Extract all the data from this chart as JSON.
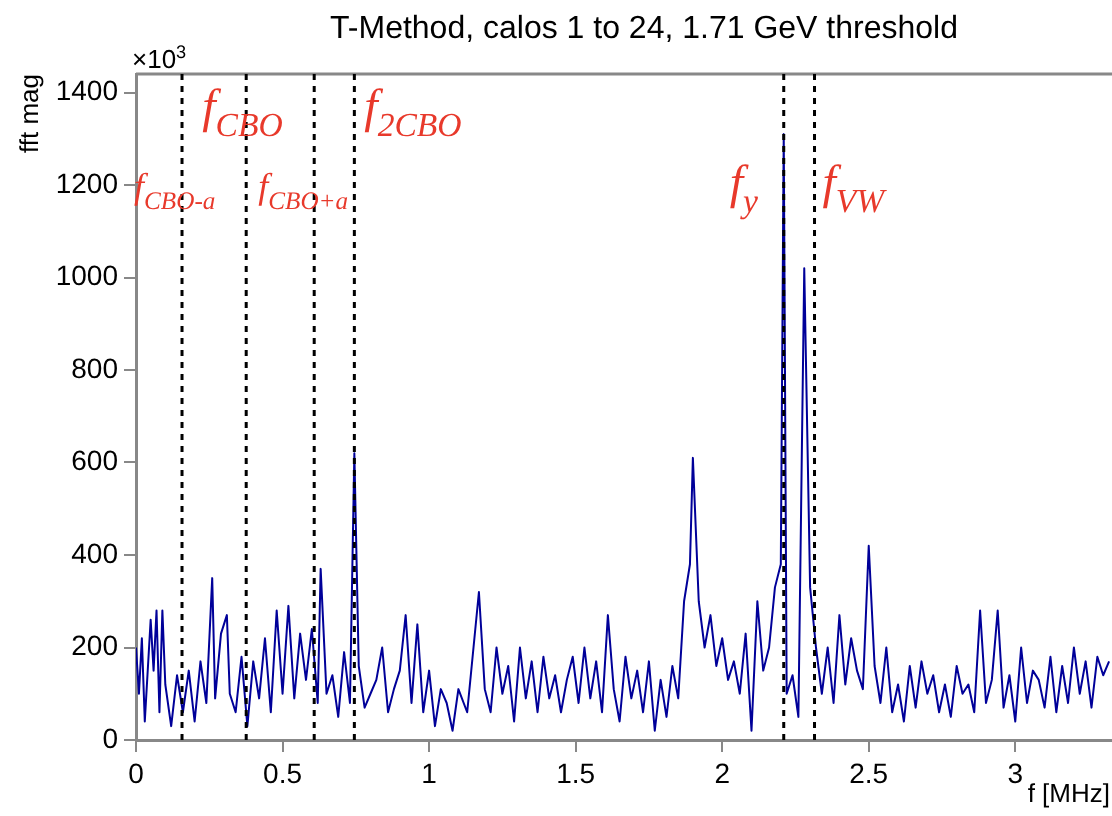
{
  "chart_data": {
    "type": "line",
    "title": "T-Method, calos 1 to 24, 1.71 GeV threshold",
    "xlabel": "f [MHz]",
    "ylabel": "fft mag",
    "xlim": [
      0,
      3.33
    ],
    "xticks": [
      0,
      0.5,
      1,
      1.5,
      2,
      2.5,
      3
    ],
    "ylim": [
      0,
      1440
    ],
    "yticks": [
      0,
      200,
      400,
      600,
      800,
      1000,
      1200,
      1400
    ],
    "grid": false,
    "legend": false,
    "marker": "none",
    "line_style": "solid",
    "series": [
      {
        "color": "#000099",
        "x": [
          0,
          0.01,
          0.02,
          0.03,
          0.05,
          0.06,
          0.07,
          0.08,
          0.09,
          0.1,
          0.12,
          0.14,
          0.16,
          0.18,
          0.2,
          0.22,
          0.24,
          0.26,
          0.27,
          0.29,
          0.31,
          0.32,
          0.34,
          0.36,
          0.38,
          0.4,
          0.42,
          0.44,
          0.46,
          0.48,
          0.5,
          0.52,
          0.54,
          0.56,
          0.58,
          0.6,
          0.62,
          0.63,
          0.65,
          0.67,
          0.69,
          0.71,
          0.73,
          0.745,
          0.76,
          0.78,
          0.8,
          0.82,
          0.84,
          0.86,
          0.88,
          0.9,
          0.92,
          0.94,
          0.96,
          0.98,
          1.0,
          1.02,
          1.04,
          1.06,
          1.08,
          1.1,
          1.13,
          1.17,
          1.19,
          1.21,
          1.23,
          1.25,
          1.27,
          1.29,
          1.31,
          1.33,
          1.35,
          1.37,
          1.39,
          1.41,
          1.43,
          1.45,
          1.47,
          1.49,
          1.51,
          1.53,
          1.55,
          1.57,
          1.59,
          1.61,
          1.63,
          1.65,
          1.67,
          1.69,
          1.71,
          1.73,
          1.75,
          1.77,
          1.79,
          1.81,
          1.83,
          1.85,
          1.87,
          1.89,
          1.9,
          1.92,
          1.94,
          1.96,
          1.98,
          2.0,
          2.02,
          2.04,
          2.06,
          2.08,
          2.1,
          2.12,
          2.14,
          2.16,
          2.18,
          2.2,
          2.21,
          2.22,
          2.24,
          2.26,
          2.28,
          2.3,
          2.32,
          2.34,
          2.36,
          2.38,
          2.4,
          2.42,
          2.44,
          2.46,
          2.48,
          2.5,
          2.52,
          2.54,
          2.56,
          2.58,
          2.6,
          2.62,
          2.64,
          2.66,
          2.68,
          2.7,
          2.72,
          2.74,
          2.76,
          2.78,
          2.8,
          2.82,
          2.84,
          2.86,
          2.88,
          2.9,
          2.92,
          2.94,
          2.96,
          2.98,
          3.0,
          3.02,
          3.04,
          3.06,
          3.08,
          3.1,
          3.12,
          3.14,
          3.16,
          3.18,
          3.2,
          3.22,
          3.24,
          3.26,
          3.28,
          3.3,
          3.32
        ],
        "values": [
          200,
          100,
          220,
          40,
          260,
          150,
          280,
          60,
          280,
          120,
          30,
          140,
          60,
          150,
          40,
          170,
          80,
          350,
          90,
          230,
          270,
          100,
          60,
          180,
          30,
          170,
          90,
          220,
          60,
          280,
          100,
          290,
          90,
          230,
          130,
          240,
          80,
          370,
          100,
          140,
          50,
          190,
          80,
          620,
          160,
          70,
          100,
          130,
          200,
          60,
          110,
          150,
          270,
          80,
          250,
          60,
          150,
          30,
          110,
          80,
          20,
          110,
          60,
          320,
          110,
          60,
          200,
          100,
          160,
          40,
          200,
          90,
          170,
          60,
          180,
          90,
          140,
          60,
          130,
          180,
          80,
          200,
          90,
          170,
          60,
          270,
          110,
          40,
          180,
          90,
          150,
          60,
          170,
          20,
          130,
          50,
          160,
          90,
          300,
          380,
          610,
          300,
          200,
          270,
          160,
          220,
          130,
          170,
          100,
          230,
          20,
          300,
          150,
          200,
          330,
          380,
          1310,
          100,
          140,
          50,
          1020,
          330,
          200,
          100,
          200,
          80,
          270,
          120,
          220,
          150,
          110,
          420,
          160,
          80,
          200,
          60,
          120,
          40,
          160,
          70,
          170,
          100,
          140,
          60,
          120,
          50,
          160,
          100,
          120,
          60,
          280,
          80,
          130,
          280,
          70,
          140,
          40,
          200,
          80,
          150,
          130,
          70,
          180,
          60,
          160,
          80,
          200,
          100,
          170,
          70,
          180,
          140,
          170
        ]
      }
    ],
    "ref_lines": [
      {
        "axis": "x",
        "value": 0.157,
        "color": "#000000",
        "line_style": "dashed",
        "label": "f$_{CBO-a}$"
      },
      {
        "axis": "x",
        "value": 0.376,
        "color": "#000000",
        "line_style": "dashed",
        "label": "f$_{CBO}$"
      },
      {
        "axis": "x",
        "value": 0.608,
        "color": "#000000",
        "line_style": "dashed",
        "label": "f$_{CBO+a}$"
      },
      {
        "axis": "x",
        "value": 0.745,
        "color": "#000000",
        "line_style": "dashed",
        "label": "f$_{2CBO}$"
      },
      {
        "axis": "x",
        "value": 2.21,
        "color": "#000000",
        "line_style": "dashed",
        "label": "f$_{y}$"
      },
      {
        "axis": "x",
        "value": 2.315,
        "color": "#000000",
        "line_style": "dashed",
        "label": "f$_{VW}$"
      }
    ],
    "annotations": [
      "×10$^{3}$"
    ]
  }
}
